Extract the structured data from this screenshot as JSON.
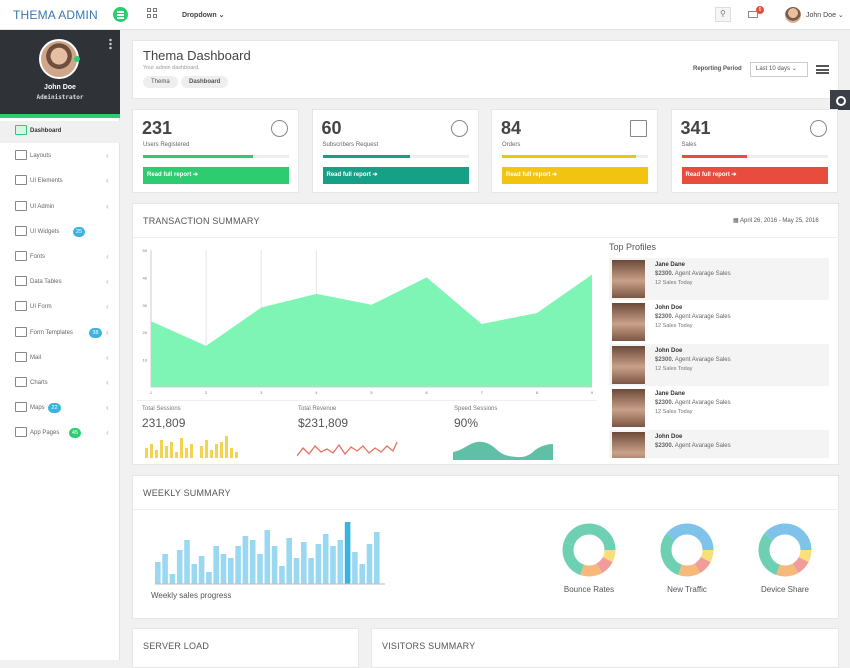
{
  "header": {
    "brand": "THEMA ADMIN",
    "dropdown": "Dropdown",
    "mail_count": "6",
    "user": "John Doe"
  },
  "sidebar": {
    "name": "John Doe",
    "role": "Administrator",
    "items": [
      {
        "label": "Dashboard",
        "badge": "",
        "badge_color": "",
        "chevron": false,
        "active": true
      },
      {
        "label": "Layouts",
        "badge": "",
        "badge_color": "",
        "chevron": true
      },
      {
        "label": "UI Elements",
        "badge": "",
        "badge_color": "",
        "chevron": true
      },
      {
        "label": "UI Admin",
        "badge": "",
        "badge_color": "",
        "chevron": true
      },
      {
        "label": "UI Widgets",
        "badge": "25",
        "badge_color": "#3bb3e0",
        "chevron": false
      },
      {
        "label": "Fonts",
        "badge": "",
        "badge_color": "",
        "chevron": true
      },
      {
        "label": "Data Tables",
        "badge": "",
        "badge_color": "",
        "chevron": true
      },
      {
        "label": "UI Form",
        "badge": "",
        "badge_color": "",
        "chevron": true
      },
      {
        "label": "Form Templates",
        "badge": "38",
        "badge_color": "#3bb3e0",
        "chevron": true
      },
      {
        "label": "Mail",
        "badge": "",
        "badge_color": "",
        "chevron": true
      },
      {
        "label": "Charts",
        "badge": "",
        "badge_color": "",
        "chevron": true
      },
      {
        "label": "Maps",
        "badge": "22",
        "badge_color": "#3bb3e0",
        "chevron": true
      },
      {
        "label": "App Pages",
        "badge": "45",
        "badge_color": "#2ecc71",
        "chevron": true
      }
    ]
  },
  "page": {
    "title": "Thema Dashboard",
    "subtitle": "Your admin dashboard.",
    "breadcrumb": [
      "Thema",
      "Dashboard"
    ],
    "reporting_label": "Reporting Period",
    "reporting_value": "Last 10 days"
  },
  "stats": [
    {
      "value": "231",
      "label": "Users Registered",
      "button": "Read full report",
      "color": "#2ecc71",
      "progress": 0.75
    },
    {
      "value": "60",
      "label": "Subscribers Request",
      "button": "Read full report",
      "color": "#16a085",
      "progress": 0.6
    },
    {
      "value": "84",
      "label": "Orders",
      "button": "Read full report",
      "color": "#f1c40f",
      "progress": 0.92
    },
    {
      "value": "341",
      "label": "Sales",
      "button": "Read full report",
      "color": "#e74c3c",
      "progress": 0.45
    }
  ],
  "transaction": {
    "title": "TRANSACTION SUMMARY",
    "date": "April 26, 2016 - May 25, 2016",
    "mini": [
      {
        "label": "Total Sessions",
        "value": "231,809"
      },
      {
        "label": "Total Revenue",
        "value": "$231,809"
      },
      {
        "label": "Speed Sessions",
        "value": "90%"
      }
    ]
  },
  "chart_data": {
    "type": "area",
    "x": [
      "1",
      "2",
      "3",
      "4",
      "5",
      "6",
      "7",
      "8",
      "9"
    ],
    "values": [
      24,
      15,
      29,
      34,
      30,
      40,
      23,
      27,
      41
    ],
    "ylim": [
      0,
      50
    ],
    "yticks": [
      "50",
      "40",
      "30",
      "20",
      "10"
    ],
    "color": "#7ef5b4"
  },
  "top_profiles": {
    "title": "Top Profiles",
    "items": [
      {
        "name": "Jane Dane",
        "sales": "$2300.",
        "desc": "Agent Avarage Sales",
        "today": "12 Sales Today"
      },
      {
        "name": "John Doe",
        "sales": "$2300.",
        "desc": "Agent Avarage Sales",
        "today": "12 Sales Today"
      },
      {
        "name": "John Doe",
        "sales": "$2300.",
        "desc": "Agent Avarage Sales",
        "today": "12 Sales Today"
      },
      {
        "name": "Jane Dane",
        "sales": "$2300.",
        "desc": "Agent Avarage Sales",
        "today": "12 Sales Today"
      },
      {
        "name": "John Doe",
        "sales": "$2300.",
        "desc": "Agent Avarage Sales",
        "today": ""
      }
    ]
  },
  "weekly": {
    "title": "WEEKLY SUMMARY",
    "caption": "Weekly sales progress",
    "donuts": [
      "Bounce Rates",
      "New Traffic",
      "Device Share"
    ]
  },
  "bottom": {
    "server": "SERVER LOAD",
    "visitors": "VISITORS SUMMARY"
  }
}
